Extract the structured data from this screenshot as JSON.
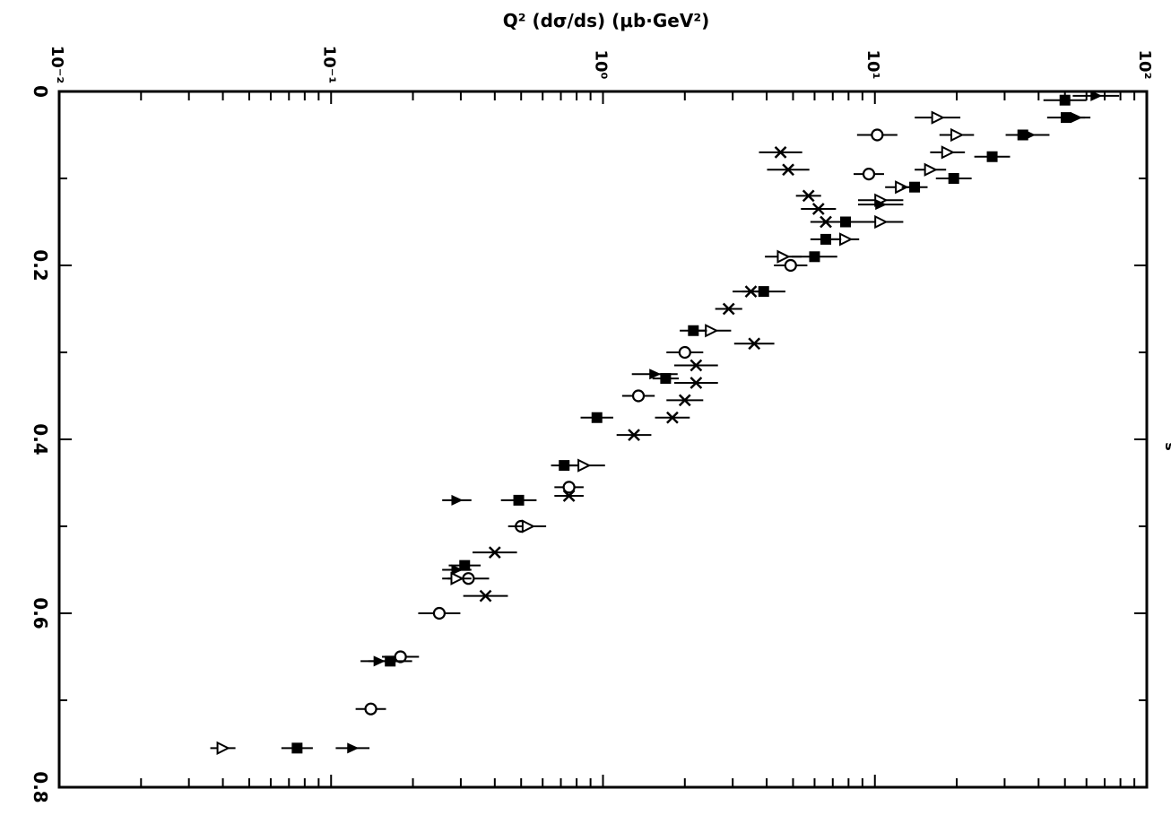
{
  "chart_data": {
    "type": "scatter",
    "title": "",
    "xlabel": "s",
    "ylabel_top": "Q² (dσ/ds) (μb·GeV²)",
    "x_axis": {
      "ticks": [
        0,
        0.2,
        0.4,
        0.6,
        0.8
      ],
      "tick_labels": [
        "0",
        "0.2",
        "0.4",
        "0.6",
        "0.8"
      ],
      "range": [
        0,
        0.8
      ]
    },
    "y_axis": {
      "scale": "log",
      "range": [
        0.01,
        100
      ],
      "tick_labels": [
        "10⁻²",
        "10⁻¹",
        "10⁰",
        "10¹",
        "10²"
      ]
    },
    "grid": false,
    "series": [
      {
        "marker": "cross",
        "points": [
          {
            "x": 0.07,
            "y": 4.5
          },
          {
            "x": 0.09,
            "y": 4.8
          },
          {
            "x": 0.12,
            "y": 5.7
          },
          {
            "x": 0.135,
            "y": 6.2
          },
          {
            "x": 0.15,
            "y": 6.6
          },
          {
            "x": 0.23,
            "y": 3.5
          },
          {
            "x": 0.25,
            "y": 2.9
          },
          {
            "x": 0.29,
            "y": 3.6
          },
          {
            "x": 0.315,
            "y": 2.2
          },
          {
            "x": 0.335,
            "y": 2.2
          },
          {
            "x": 0.355,
            "y": 2.0
          },
          {
            "x": 0.375,
            "y": 1.8
          },
          {
            "x": 0.395,
            "y": 1.3
          },
          {
            "x": 0.465,
            "y": 0.75
          },
          {
            "x": 0.53,
            "y": 0.4
          },
          {
            "x": 0.58,
            "y": 0.37
          }
        ]
      },
      {
        "marker": "open-circle",
        "points": [
          {
            "x": 0.05,
            "y": 10.2
          },
          {
            "x": 0.095,
            "y": 9.5
          },
          {
            "x": 0.2,
            "y": 4.9
          },
          {
            "x": 0.3,
            "y": 2.0
          },
          {
            "x": 0.35,
            "y": 1.35
          },
          {
            "x": 0.455,
            "y": 0.75
          },
          {
            "x": 0.5,
            "y": 0.5
          },
          {
            "x": 0.56,
            "y": 0.32
          },
          {
            "x": 0.6,
            "y": 0.25
          },
          {
            "x": 0.65,
            "y": 0.18
          },
          {
            "x": 0.71,
            "y": 0.14
          }
        ]
      },
      {
        "marker": "open-triangle",
        "points": [
          {
            "x": 0.03,
            "y": 17.0
          },
          {
            "x": 0.05,
            "y": 20.0
          },
          {
            "x": 0.07,
            "y": 18.5
          },
          {
            "x": 0.09,
            "y": 16.0
          },
          {
            "x": 0.11,
            "y": 12.5
          },
          {
            "x": 0.125,
            "y": 10.5
          },
          {
            "x": 0.15,
            "y": 10.5
          },
          {
            "x": 0.17,
            "y": 7.8
          },
          {
            "x": 0.19,
            "y": 4.6
          },
          {
            "x": 0.275,
            "y": 2.5
          },
          {
            "x": 0.43,
            "y": 0.85
          },
          {
            "x": 0.5,
            "y": 0.53
          },
          {
            "x": 0.56,
            "y": 0.29
          },
          {
            "x": 0.755,
            "y": 0.04
          }
        ]
      },
      {
        "marker": "filled-square",
        "points": [
          {
            "x": 0.01,
            "y": 50.0
          },
          {
            "x": 0.03,
            "y": 50.5
          },
          {
            "x": 0.05,
            "y": 35.0
          },
          {
            "x": 0.075,
            "y": 27.0
          },
          {
            "x": 0.1,
            "y": 19.5
          },
          {
            "x": 0.11,
            "y": 14.0
          },
          {
            "x": 0.15,
            "y": 7.8
          },
          {
            "x": 0.17,
            "y": 6.6
          },
          {
            "x": 0.19,
            "y": 6.0
          },
          {
            "x": 0.23,
            "y": 3.9
          },
          {
            "x": 0.275,
            "y": 2.15
          },
          {
            "x": 0.33,
            "y": 1.7
          },
          {
            "x": 0.375,
            "y": 0.95
          },
          {
            "x": 0.43,
            "y": 0.72
          },
          {
            "x": 0.47,
            "y": 0.49
          },
          {
            "x": 0.545,
            "y": 0.31
          },
          {
            "x": 0.655,
            "y": 0.165
          },
          {
            "x": 0.755,
            "y": 0.075
          }
        ]
      },
      {
        "marker": "filled-triangle",
        "points": [
          {
            "x": 0.005,
            "y": 65.0
          },
          {
            "x": 0.03,
            "y": 55.0
          },
          {
            "x": 0.05,
            "y": 37.0
          },
          {
            "x": 0.13,
            "y": 10.5
          },
          {
            "x": 0.325,
            "y": 1.55
          },
          {
            "x": 0.47,
            "y": 0.29
          },
          {
            "x": 0.55,
            "y": 0.29
          },
          {
            "x": 0.655,
            "y": 0.15
          },
          {
            "x": 0.755,
            "y": 0.12
          }
        ]
      }
    ]
  }
}
